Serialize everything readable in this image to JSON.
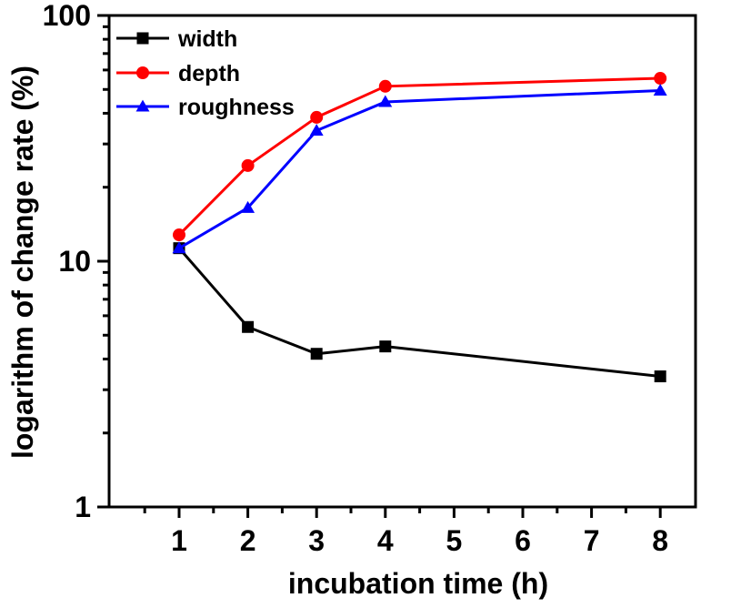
{
  "chart_data": {
    "type": "line",
    "title": "",
    "xlabel": "incubation time (h)",
    "ylabel": "logarithm of change rate (%)",
    "yscale": "log",
    "ylim": [
      1,
      100
    ],
    "x_ticks": [
      "1",
      "2",
      "3",
      "4",
      "5",
      "6",
      "7",
      "8"
    ],
    "y_ticks": [
      "1",
      "10",
      "100"
    ],
    "x": [
      1,
      2,
      3,
      4,
      8
    ],
    "legend_position": "top-left",
    "series": [
      {
        "name": "width",
        "color": "#000000",
        "marker": "square",
        "values": [
          11.3,
          5.4,
          4.2,
          4.5,
          3.4
        ]
      },
      {
        "name": "depth",
        "color": "#ff0000",
        "marker": "circle",
        "values": [
          12.8,
          24.5,
          38.5,
          51.5,
          55.5
        ]
      },
      {
        "name": "roughness",
        "color": "#0000ff",
        "marker": "triangle",
        "values": [
          11.3,
          16.5,
          34.0,
          44.5,
          49.5
        ]
      }
    ]
  }
}
